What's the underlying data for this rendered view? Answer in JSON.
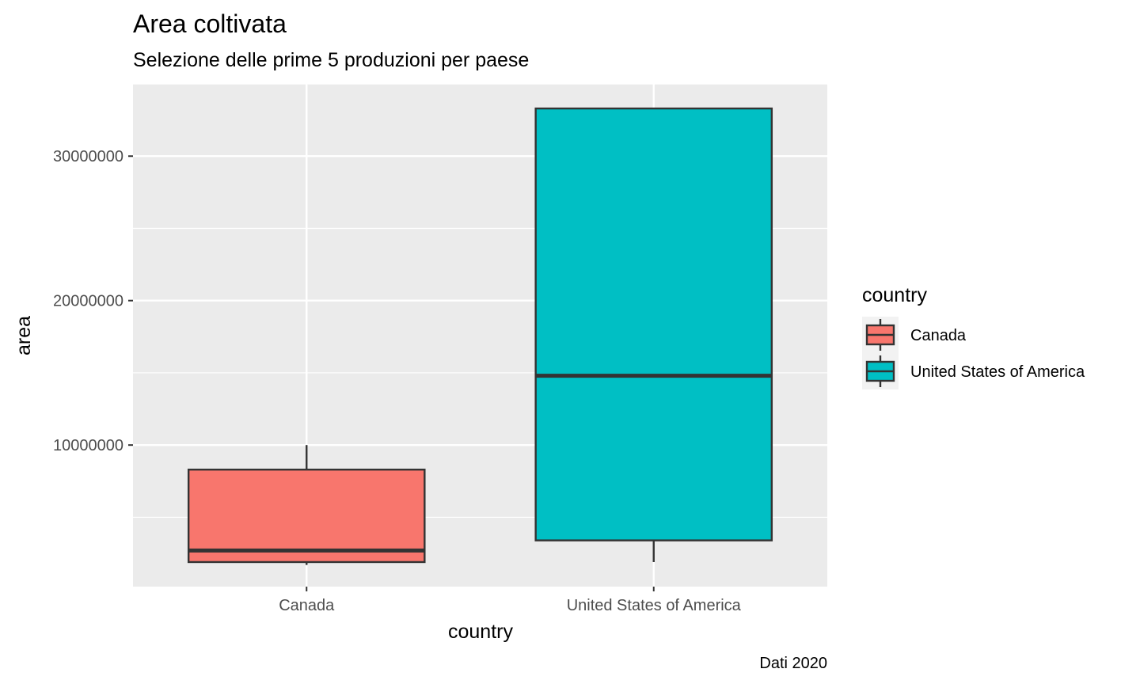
{
  "chart_data": {
    "type": "boxplot",
    "title": "Area coltivata",
    "subtitle": "Selezione delle prime 5 produzioni per paese",
    "caption": "Dati 2020",
    "xlabel": "country",
    "ylabel": "area",
    "categories": [
      "Canada",
      "United States of America"
    ],
    "y_ticks": [
      10000000,
      20000000,
      30000000
    ],
    "y_tick_labels": [
      "10000000",
      "20000000",
      "30000000"
    ],
    "ylim": [
      200000,
      35000000
    ],
    "grid": true,
    "legend": {
      "title": "country",
      "position": "right",
      "entries": [
        "Canada",
        "United States of America"
      ]
    },
    "series": [
      {
        "name": "Canada",
        "color": "#F8766D",
        "min": 1700000,
        "q1": 1900000,
        "median": 2700000,
        "q3": 8300000,
        "max": 10000000
      },
      {
        "name": "United States of America",
        "color": "#00BFC4",
        "min": 1900000,
        "q1": 3400000,
        "median": 14800000,
        "q3": 33300000,
        "max": 33300000
      }
    ]
  }
}
